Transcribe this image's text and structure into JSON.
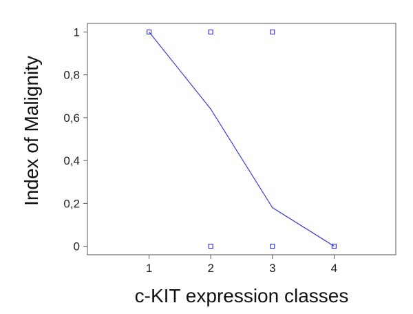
{
  "chart_data": {
    "type": "scatter",
    "xlabel": "c-KIT expression classes",
    "ylabel": "Index of Malignity",
    "xlim": [
      0,
      5
    ],
    "ylim": [
      -0.04,
      1.04
    ],
    "x_ticks": [
      1,
      2,
      3,
      4
    ],
    "x_tick_labels": [
      "1",
      "2",
      "3",
      "4"
    ],
    "y_ticks": [
      0,
      0.2,
      0.4,
      0.6,
      0.8,
      1
    ],
    "y_tick_labels": [
      "0",
      "0,2",
      "0,4",
      "0,6",
      "0,8",
      "1"
    ],
    "grid": false,
    "legend": "none",
    "colors": {
      "series": "#3b3bd6",
      "axes": "#555555"
    },
    "series": [
      {
        "type": "scatter",
        "marker": "square-open",
        "points": [
          {
            "x": 1,
            "y": 1
          },
          {
            "x": 2,
            "y": 1
          },
          {
            "x": 3,
            "y": 1
          },
          {
            "x": 2,
            "y": 0
          },
          {
            "x": 3,
            "y": 0
          },
          {
            "x": 4,
            "y": 0
          }
        ]
      },
      {
        "type": "line",
        "points": [
          {
            "x": 1,
            "y": 1
          },
          {
            "x": 2,
            "y": 0.64
          },
          {
            "x": 3,
            "y": 0.18
          },
          {
            "x": 4,
            "y": 0
          }
        ]
      }
    ]
  }
}
